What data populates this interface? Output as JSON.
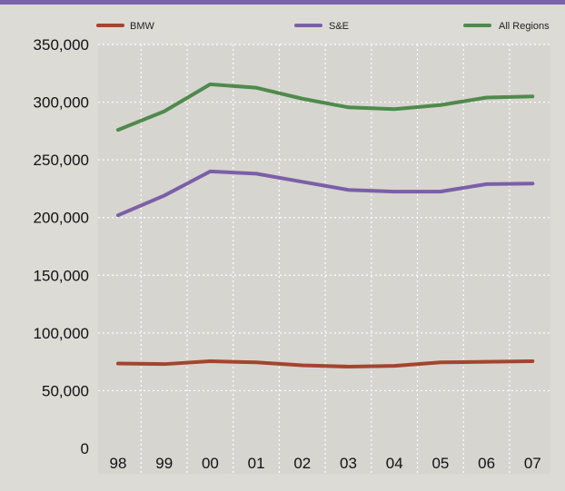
{
  "colors": {
    "background": "#dcdbd6",
    "plot_background": "#d6d5d0",
    "grid": "#ffffff",
    "top_bar": "#7b64a8"
  },
  "chart_data": {
    "type": "line",
    "categories": [
      "98",
      "99",
      "00",
      "01",
      "02",
      "03",
      "04",
      "05",
      "06",
      "07"
    ],
    "series": [
      {
        "name": "BMW",
        "color": "#a3452e",
        "values": [
          73500,
          73000,
          75500,
          74500,
          72000,
          70800,
          71500,
          74500,
          75000,
          75500
        ]
      },
      {
        "name": "S&E",
        "color": "#7b5fa6",
        "values": [
          202000,
          219000,
          240000,
          238000,
          231000,
          224000,
          222500,
          222500,
          229000,
          229500
        ]
      },
      {
        "name": "All Regions",
        "color": "#4f8a4c",
        "values": [
          276000,
          292000,
          315500,
          312500,
          303000,
          295500,
          294000,
          297500,
          304000,
          305000
        ]
      }
    ],
    "ylim": [
      0,
      350000
    ],
    "yticks": [
      "0",
      "50,000",
      "100,000",
      "150,000",
      "200,000",
      "250,000",
      "300,000",
      "350,000"
    ],
    "ytick_values": [
      0,
      50000,
      100000,
      150000,
      200000,
      250000,
      300000,
      350000
    ],
    "grid": true,
    "grid_style": "dotted",
    "legend_position": "top"
  }
}
